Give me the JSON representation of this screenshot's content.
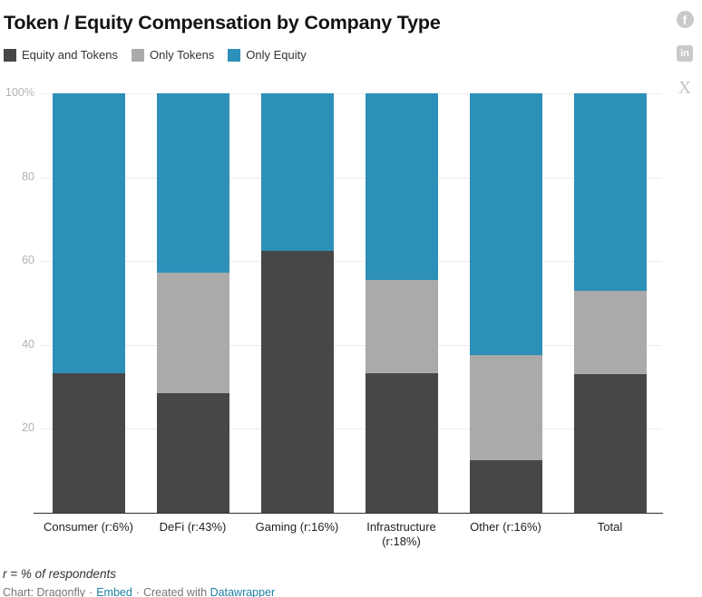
{
  "title": "Token / Equity Compensation by Company Type",
  "social": {
    "facebook_glyph": "f",
    "linkedin_glyph": "in",
    "x_glyph": "X"
  },
  "chart_data": {
    "type": "bar",
    "stacked": true,
    "title": "Token / Equity Compensation by Company Type",
    "categories": [
      "Consumer (r:6%)",
      "DeFi (r:43%)",
      "Gaming (r:16%)",
      "Infrastructure (r:18%)",
      "Other (r:16%)",
      "Total"
    ],
    "series": [
      {
        "name": "Equity and Tokens",
        "color": "#474747",
        "values": [
          33.3,
          28.6,
          62.5,
          33.3,
          12.5,
          33
        ]
      },
      {
        "name": "Only Tokens",
        "color": "#aaaaaa",
        "values": [
          0,
          28.6,
          0,
          22.2,
          25,
          20
        ]
      },
      {
        "name": "Only Equity",
        "color": "#2d90b8",
        "values": [
          66.7,
          42.8,
          37.5,
          44.5,
          62.5,
          47
        ]
      }
    ],
    "ylim": [
      0,
      100
    ],
    "yticks": [
      20,
      40,
      60,
      80,
      100
    ],
    "ytick_labels": [
      "20",
      "40",
      "60",
      "80",
      "100%"
    ],
    "xlabel": "",
    "ylabel": "",
    "grid": true,
    "legend_position": "top-left"
  },
  "footer": {
    "note": "r = % of respondents",
    "credit_prefix": "Chart: Dragonfly",
    "separator": "·",
    "embed_label": "Embed",
    "created_with": "Created with",
    "datawrapper_label": "Datawrapper"
  },
  "colors": {
    "dark": "#474747",
    "gray": "#aaaaaa",
    "blue": "#2d90b8",
    "link": "#1d81a2",
    "gridline": "#ececec",
    "axis": "#2e2e2e"
  }
}
